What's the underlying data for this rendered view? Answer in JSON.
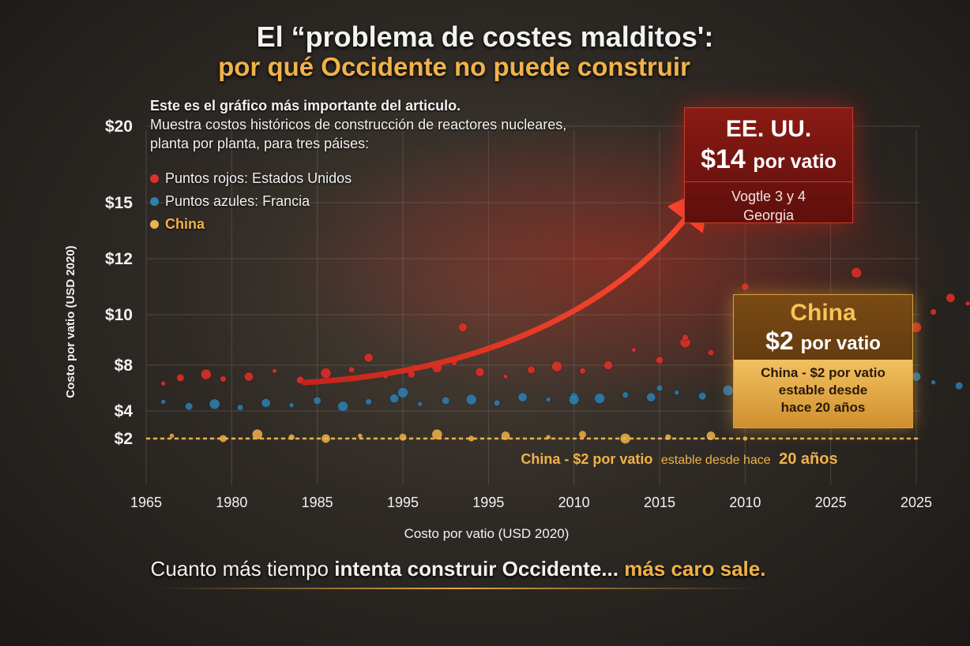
{
  "title_line1": "El “problema de costes malditos':",
  "title_line2": "por qué Occidente no puede construir",
  "intro": {
    "line1": "Este es el gráfico más importante del articulo.",
    "line2": "Muestra costos históricos de construcción de reactores nucleares,",
    "line3": "planta por planta, para tres páises:"
  },
  "legend": [
    {
      "label": "Puntos rojos: Estados Unidos",
      "color": "#e0302a"
    },
    {
      "label": "Puntos azules: Francia",
      "color": "#2f7fb0"
    },
    {
      "label": "China",
      "color": "#f0b24a"
    }
  ],
  "us_box": {
    "country": "EE. UU.",
    "price": "$14",
    "unit": "por vatio",
    "plant_line1": "Vogtle 3 y 4",
    "plant_line2": "Georgia"
  },
  "china_box": {
    "country": "China",
    "price": "$2",
    "unit": "por vatio",
    "note_line1": "China - $2 por vatio",
    "note_line2": "estable desde",
    "note_line3": "hace 20 años"
  },
  "china_line_annotation": {
    "part1": "China - $2 por vatio",
    "part2": "estable desde hace",
    "part3": "20 años"
  },
  "footer": {
    "part1": "Cuanto más tiempo",
    "part2": "intenta construir Occidente...",
    "part3": "más caro sale."
  },
  "chart_data": {
    "type": "scatter",
    "ylabel": "Costo por vatio (USD 2020)",
    "xlabel": "Costo por vatio (USD 2020)",
    "y_ticks": [
      {
        "label": "$20",
        "value": 20
      },
      {
        "label": "$15",
        "value": 15
      },
      {
        "label": "$12",
        "value": 12
      },
      {
        "label": "$10",
        "value": 10
      },
      {
        "label": "$8",
        "value": 8
      },
      {
        "label": "$4",
        "value": 4
      },
      {
        "label": "$2",
        "value": 2
      }
    ],
    "x_ticks": [
      "1965",
      "1980",
      "1985",
      "1995",
      "1995",
      "2010",
      "2015",
      "2010",
      "2025",
      "2025"
    ],
    "series": [
      {
        "name": "Puntos rojos: Estados Unidos",
        "color": "#e0302a",
        "points": [
          [
            0.2,
            6.4
          ],
          [
            0.4,
            6.9
          ],
          [
            0.7,
            7.2
          ],
          [
            0.9,
            6.8
          ],
          [
            1.2,
            7.0
          ],
          [
            1.5,
            7.5
          ],
          [
            1.8,
            6.7
          ],
          [
            2.1,
            7.3
          ],
          [
            2.4,
            7.6
          ],
          [
            2.6,
            8.3
          ],
          [
            2.8,
            7.0
          ],
          [
            3.1,
            7.2
          ],
          [
            3.4,
            7.8
          ],
          [
            3.6,
            8.1
          ],
          [
            3.9,
            7.4
          ],
          [
            4.2,
            7.0
          ],
          [
            4.5,
            7.6
          ],
          [
            4.8,
            7.9
          ],
          [
            5.1,
            7.5
          ],
          [
            5.4,
            8.0
          ],
          [
            5.7,
            8.6
          ],
          [
            6.0,
            8.2
          ],
          [
            6.3,
            8.9
          ],
          [
            6.6,
            8.5
          ],
          [
            6.9,
            8.3
          ],
          [
            7.2,
            8.7
          ],
          [
            7.5,
            9.0
          ],
          [
            7.8,
            8.8
          ],
          [
            8.1,
            9.3
          ],
          [
            8.4,
            9.1
          ],
          [
            8.6,
            10.3
          ],
          [
            8.8,
            9.7
          ],
          [
            9.0,
            9.5
          ],
          [
            9.2,
            10.1
          ],
          [
            9.4,
            10.6
          ],
          [
            9.6,
            10.4
          ],
          [
            9.8,
            11.0
          ],
          [
            10.0,
            10.8
          ],
          [
            10.2,
            11.2
          ],
          [
            10.4,
            11.6
          ],
          [
            10.6,
            10.9
          ],
          [
            10.8,
            11.4
          ],
          [
            11.0,
            11.9
          ],
          [
            11.2,
            12.1
          ],
          [
            11.4,
            11.5
          ],
          [
            11.6,
            12.4
          ],
          [
            11.8,
            12.8
          ],
          [
            12.0,
            12.6
          ],
          [
            12.2,
            13.1
          ],
          [
            12.4,
            13.5
          ],
          [
            12.6,
            13.2
          ],
          [
            12.8,
            13.9
          ],
          [
            13.0,
            14.2
          ],
          [
            13.2,
            14.6
          ],
          [
            13.4,
            14.9
          ],
          [
            13.6,
            15.4
          ],
          [
            13.8,
            15.9
          ],
          [
            14.0,
            16.5
          ],
          [
            14.2,
            17.2
          ],
          [
            14.4,
            18.0
          ],
          [
            10.5,
            10.0
          ],
          [
            11.9,
            11.0
          ],
          [
            12.7,
            12.2
          ],
          [
            13.3,
            13.7
          ],
          [
            9.9,
            9.8
          ],
          [
            8.9,
            8.9
          ],
          [
            7.0,
            11.0
          ],
          [
            8.3,
            11.5
          ],
          [
            6.3,
            9.1
          ],
          [
            3.7,
            9.5
          ]
        ]
      },
      {
        "name": "Puntos azules: Francia",
        "color": "#2f7fb0",
        "points": [
          [
            0.2,
            4.8
          ],
          [
            0.5,
            4.4
          ],
          [
            0.8,
            4.6
          ],
          [
            1.1,
            4.3
          ],
          [
            1.4,
            4.7
          ],
          [
            1.7,
            4.5
          ],
          [
            2.0,
            4.9
          ],
          [
            2.3,
            4.4
          ],
          [
            2.6,
            4.8
          ],
          [
            2.9,
            5.1
          ],
          [
            3.2,
            4.6
          ],
          [
            3.5,
            4.9
          ],
          [
            3.8,
            5.0
          ],
          [
            4.1,
            4.7
          ],
          [
            4.4,
            5.2
          ],
          [
            4.7,
            5.0
          ],
          [
            5.0,
            5.3
          ],
          [
            5.3,
            5.1
          ],
          [
            5.6,
            5.4
          ],
          [
            5.9,
            5.2
          ],
          [
            6.2,
            5.6
          ],
          [
            6.5,
            5.3
          ],
          [
            6.8,
            5.8
          ],
          [
            7.1,
            5.5
          ],
          [
            7.4,
            6.0
          ],
          [
            7.7,
            5.7
          ],
          [
            8.0,
            6.1
          ],
          [
            8.3,
            5.9
          ],
          [
            8.6,
            6.3
          ],
          [
            8.9,
            6.0
          ],
          [
            9.2,
            6.5
          ],
          [
            9.5,
            6.2
          ],
          [
            9.8,
            6.7
          ],
          [
            10.1,
            6.4
          ],
          [
            10.4,
            6.9
          ],
          [
            10.7,
            6.6
          ],
          [
            11.0,
            7.1
          ],
          [
            11.3,
            6.8
          ],
          [
            11.6,
            7.3
          ],
          [
            11.9,
            7.0
          ],
          [
            12.2,
            7.6
          ],
          [
            12.5,
            7.4
          ],
          [
            3.0,
            5.6
          ],
          [
            6.0,
            6.0
          ],
          [
            9.0,
            7.0
          ],
          [
            10.0,
            5.6
          ],
          [
            7.5,
            6.8
          ],
          [
            5.0,
            5.0
          ]
        ]
      },
      {
        "name": "China",
        "color": "#f0b24a",
        "points": [
          [
            0.3,
            2.2
          ],
          [
            0.9,
            2.0
          ],
          [
            1.3,
            2.3
          ],
          [
            1.7,
            2.1
          ],
          [
            2.1,
            2.0
          ],
          [
            2.5,
            2.2
          ],
          [
            3.0,
            2.1
          ],
          [
            3.4,
            2.3
          ],
          [
            3.8,
            2.0
          ],
          [
            4.2,
            2.2
          ],
          [
            4.7,
            2.1
          ],
          [
            5.1,
            2.3
          ],
          [
            5.6,
            2.0
          ],
          [
            6.1,
            2.1
          ],
          [
            6.6,
            2.2
          ],
          [
            7.0,
            2.0
          ]
        ]
      }
    ],
    "reference_line": {
      "value": 2,
      "label": "China - $2 por vatio estable desde hace 20 años"
    },
    "grid": true,
    "legend_position": "top-left"
  }
}
